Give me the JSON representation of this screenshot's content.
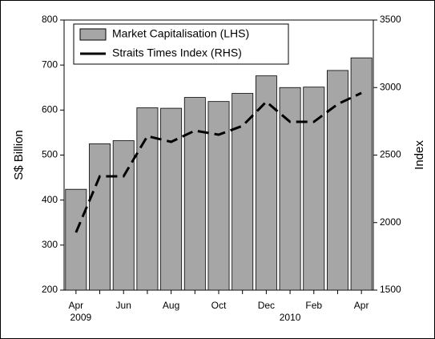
{
  "chart_data": {
    "type": "bar_line",
    "categories": [
      "Apr",
      null,
      "Jun",
      null,
      "Aug",
      null,
      "Oct",
      null,
      "Dec",
      null,
      "Feb",
      null,
      "Apr"
    ],
    "annotations": [
      "2009",
      "2010"
    ],
    "y_label": "S$ Billion",
    "y2_label": "Index",
    "ylim": [
      200,
      800
    ],
    "yticks": [
      200,
      300,
      400,
      500,
      600,
      700,
      800
    ],
    "y2lim": [
      1500,
      3500
    ],
    "y2ticks": [
      1500,
      2000,
      2500,
      3000,
      3500
    ],
    "legend": "upper left",
    "series": [
      {
        "name": "Market Capitalisation (LHS)",
        "type": "bar",
        "color": "#a6a6a6",
        "values": [
          424,
          525,
          532,
          605,
          604,
          628,
          619,
          637,
          676,
          650,
          651,
          688,
          716
        ]
      },
      {
        "name": "Straits Times Index (RHS)",
        "type": "line",
        "axis": "y2",
        "color": "#000000",
        "values": [
          1927,
          2343,
          2343,
          2640,
          2598,
          2681,
          2651,
          2716,
          2895,
          2746,
          2746,
          2877,
          2960
        ]
      }
    ]
  }
}
